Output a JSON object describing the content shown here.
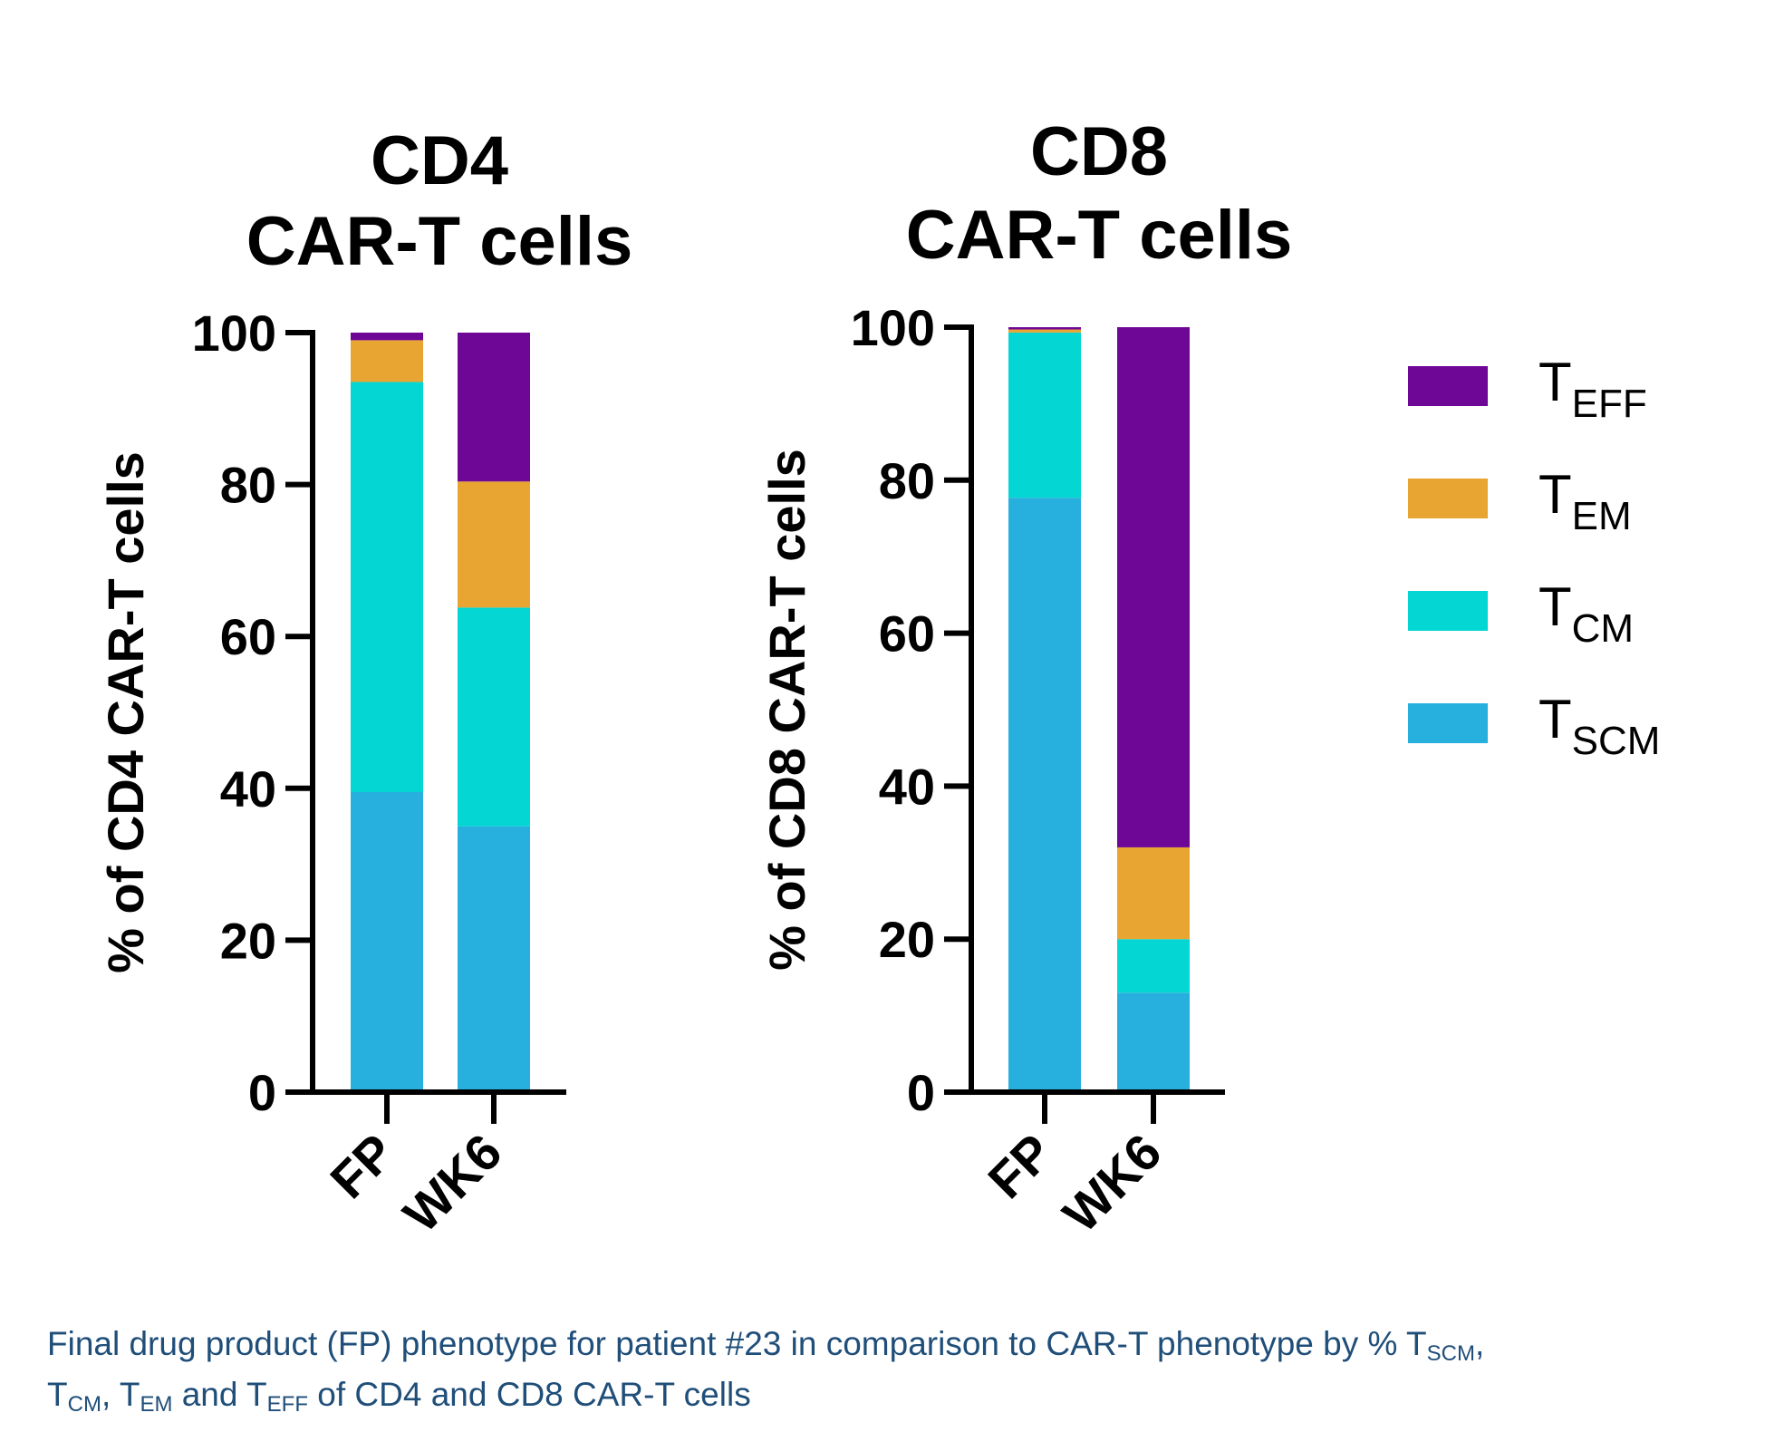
{
  "legend": {
    "items": [
      {
        "base": "T",
        "sub": "EFF",
        "color": "#6e0696"
      },
      {
        "base": "T",
        "sub": "EM",
        "color": "#e9a532"
      },
      {
        "base": "T",
        "sub": "CM",
        "color": "#03d6d3"
      },
      {
        "base": "T",
        "sub": "SCM",
        "color": "#27afdd"
      }
    ]
  },
  "colors": {
    "axis": "#000000",
    "caption": "#1f4e79"
  },
  "chart_data": [
    {
      "type": "bar",
      "stacked": true,
      "title_lines": [
        "CD4",
        "CAR-T cells"
      ],
      "ylabel": "% of CD4 CAR-T cells",
      "xlabel": "",
      "categories": [
        "FP",
        "WK6"
      ],
      "ylim": [
        0,
        100
      ],
      "yticks": [
        0,
        20,
        40,
        60,
        80,
        100
      ],
      "series": [
        {
          "name": "TSCM",
          "values": [
            39.5,
            35
          ]
        },
        {
          "name": "TCM",
          "values": [
            54,
            28.8
          ]
        },
        {
          "name": "TEM",
          "values": [
            5.5,
            16.6
          ]
        },
        {
          "name": "TEFF",
          "values": [
            1,
            19.6
          ]
        }
      ]
    },
    {
      "type": "bar",
      "stacked": true,
      "title_lines": [
        "CD8",
        "CAR-T cells"
      ],
      "ylabel": "% of CD8 CAR-T cells",
      "xlabel": "",
      "categories": [
        "FP",
        "WK6"
      ],
      "ylim": [
        0,
        100
      ],
      "yticks": [
        0,
        20,
        40,
        60,
        80,
        100
      ],
      "series": [
        {
          "name": "TSCM",
          "values": [
            77.7,
            13
          ]
        },
        {
          "name": "TCM",
          "values": [
            21.6,
            7
          ]
        },
        {
          "name": "TEM",
          "values": [
            0.4,
            12
          ]
        },
        {
          "name": "TEFF",
          "values": [
            0.3,
            68
          ]
        }
      ]
    }
  ],
  "caption": {
    "line1": [
      {
        "text": "Final drug product (FP) phenotype for patient #23 in comparison to CAR-T phenotype by % T"
      },
      {
        "text": "SCM",
        "sub": true
      },
      {
        "text": ","
      }
    ],
    "line2": [
      {
        "text": "T"
      },
      {
        "text": "CM",
        "sub": true
      },
      {
        "text": ", T"
      },
      {
        "text": "EM",
        "sub": true
      },
      {
        "text": " and T"
      },
      {
        "text": "EFF",
        "sub": true
      },
      {
        "text": " of CD4 and CD8 CAR-T cells"
      }
    ]
  }
}
